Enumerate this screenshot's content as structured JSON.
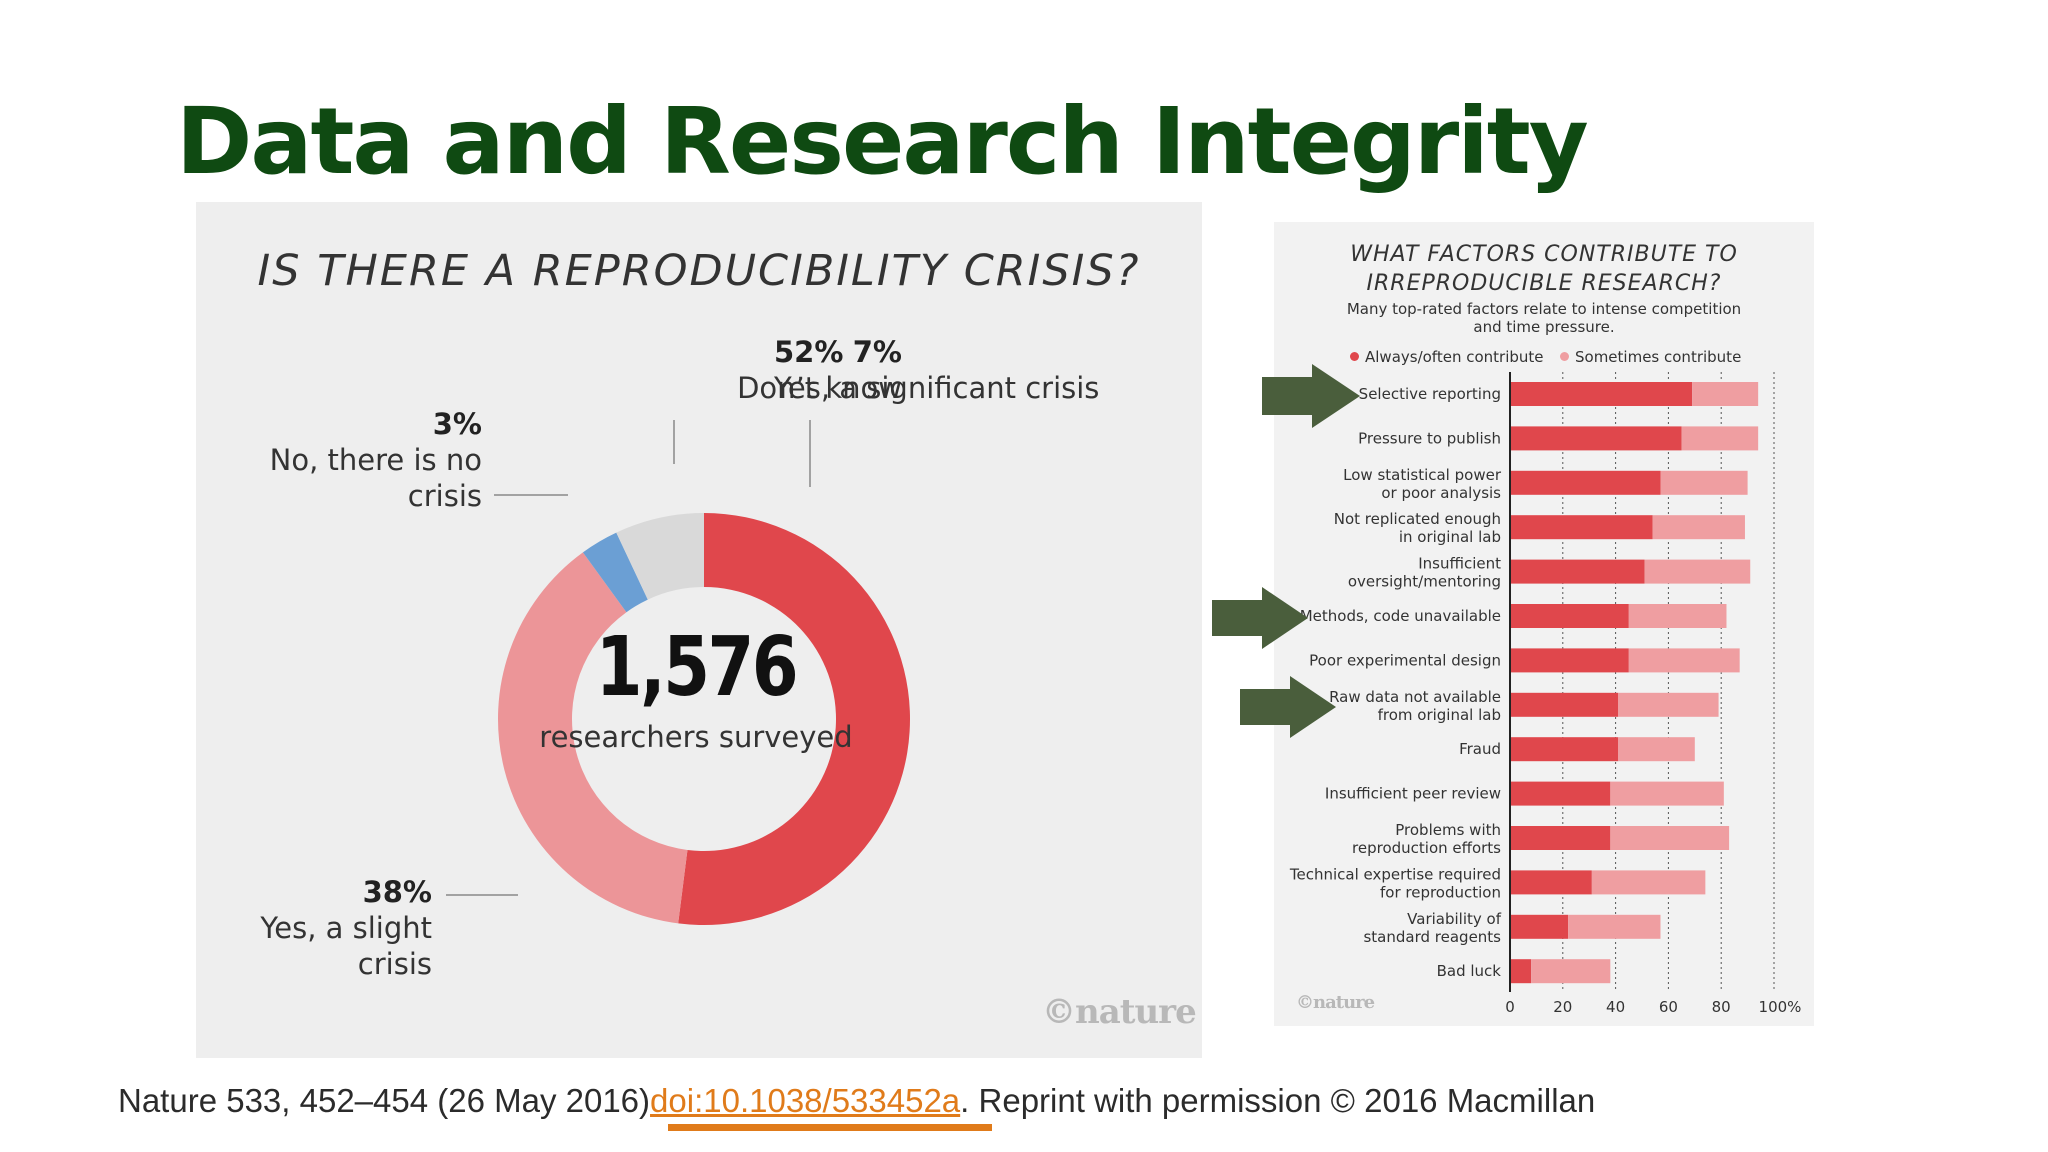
{
  "slide": {
    "title": "Data and Research Integrity",
    "citation_prefix": "Nature 533, 452–454 (26 May 2016)",
    "citation_link": "doi:10.1038/533452a",
    "citation_suffix": ".  Reprint with permission © 2016 Macmillan",
    "arrow_color": "#4a5e3c"
  },
  "chart_data": [
    {
      "type": "pie",
      "variant": "donut",
      "title": "IS THERE A REPRODUCIBILITY CRISIS?",
      "center_value": "1,576",
      "center_label": "researchers surveyed",
      "slices": [
        {
          "pct": "52%",
          "value": 52,
          "label": "Yes, a significant crisis",
          "color": "#e0474c"
        },
        {
          "pct": "38%",
          "value": 38,
          "label": "Yes, a slight crisis",
          "color": "#ec9598"
        },
        {
          "pct": "3%",
          "value": 3,
          "label": "No, there is no crisis",
          "color": "#6b9fd4"
        },
        {
          "pct": "7%",
          "value": 7,
          "label": "Don’t know",
          "color": "#d9d9d9"
        }
      ],
      "watermark": "©nature"
    },
    {
      "type": "bar",
      "orientation": "horizontal",
      "stacked": true,
      "title": "WHAT FACTORS CONTRIBUTE TO IRREPRODUCIBLE RESEARCH?",
      "subtitle": "Many top-rated factors relate to intense competition and time pressure.",
      "legend": [
        {
          "label": "Always/often contribute",
          "color": "#e0474c"
        },
        {
          "label": "Sometimes contribute",
          "color": "#ef9ea1"
        }
      ],
      "legend_position": "top",
      "xlim": [
        0,
        100
      ],
      "xticks": [
        "0",
        "20",
        "40",
        "60",
        "80",
        "100%"
      ],
      "grid": "dotted vertical",
      "categories": [
        {
          "line1": "Selective reporting",
          "line2": ""
        },
        {
          "line1": "Pressure to publish",
          "line2": ""
        },
        {
          "line1": "Low statistical power",
          "line2": "or poor analysis"
        },
        {
          "line1": "Not replicated enough",
          "line2": "in original lab"
        },
        {
          "line1": "Insufficient",
          "line2": "oversight/mentoring"
        },
        {
          "line1": "Methods, code unavailable",
          "line2": ""
        },
        {
          "line1": "Poor experimental design",
          "line2": ""
        },
        {
          "line1": "Raw data not available",
          "line2": "from original lab"
        },
        {
          "line1": "Fraud",
          "line2": ""
        },
        {
          "line1": "Insufficient peer review",
          "line2": ""
        },
        {
          "line1": "Problems with",
          "line2": "reproduction efforts"
        },
        {
          "line1": "Technical expertise required",
          "line2": "for reproduction"
        },
        {
          "line1": "Variability of",
          "line2": "standard reagents"
        },
        {
          "line1": "Bad luck",
          "line2": ""
        }
      ],
      "series": [
        {
          "name": "Always/often contribute",
          "values": [
            69,
            65,
            57,
            54,
            51,
            45,
            45,
            41,
            41,
            38,
            38,
            31,
            22,
            8
          ]
        },
        {
          "name": "Sometimes contribute",
          "values": [
            25,
            29,
            33,
            35,
            40,
            37,
            42,
            38,
            29,
            43,
            45,
            43,
            35,
            30
          ]
        }
      ],
      "highlighted": [
        "Selective reporting",
        "Methods, code unavailable",
        "Raw data not available from original lab"
      ],
      "watermark": "©nature"
    }
  ]
}
